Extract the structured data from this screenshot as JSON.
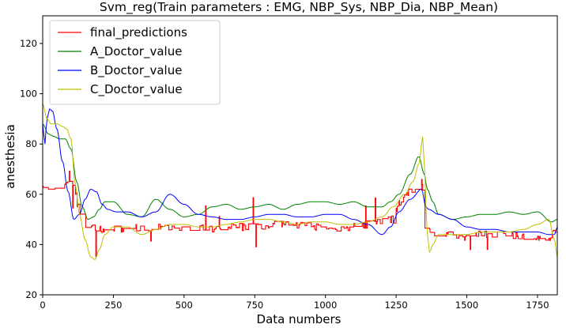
{
  "chart_data": {
    "type": "line",
    "title": "Svm_reg(Train parameters : EMG, NBP_Sys, NBP_Dia, NBP_Mean)",
    "xlabel": "Data numbers",
    "ylabel": "anesthesia",
    "xlim": [
      0,
      1820
    ],
    "ylim": [
      20,
      131
    ],
    "xticks": [
      0,
      250,
      500,
      750,
      1000,
      1250,
      1500,
      1750
    ],
    "yticks": [
      20,
      40,
      60,
      80,
      100,
      120
    ],
    "grid": false,
    "legend_position": "top-left",
    "series": [
      {
        "name": "final_predictions",
        "color": "#ff0000",
        "style": "noisy",
        "x": [
          0,
          20,
          40,
          60,
          80,
          100,
          115,
          125,
          140,
          160,
          180,
          200,
          230,
          260,
          300,
          350,
          400,
          450,
          500,
          550,
          600,
          650,
          700,
          750,
          800,
          850,
          900,
          950,
          1000,
          1050,
          1100,
          1150,
          1200,
          1240,
          1260,
          1280,
          1300,
          1320,
          1340,
          1345,
          1350,
          1360,
          1400,
          1450,
          1500,
          1550,
          1600,
          1650,
          1700,
          1750,
          1790,
          1810,
          1820
        ],
        "y": [
          62,
          62,
          61,
          63,
          63,
          65,
          61,
          55,
          47,
          46,
          47,
          46,
          47,
          46,
          46,
          47,
          47,
          47,
          46,
          47,
          46,
          47,
          47,
          47,
          48,
          48,
          48,
          47,
          47,
          46,
          47,
          48,
          49,
          50,
          57,
          60,
          61,
          63,
          65,
          60,
          46,
          45,
          44,
          44,
          43,
          44,
          44,
          44,
          43,
          43,
          43,
          45,
          49
        ]
      },
      {
        "name": "A_Doctor_value",
        "color": "#008000",
        "style": "smooth",
        "x": [
          0,
          20,
          40,
          60,
          80,
          100,
          120,
          140,
          160,
          180,
          200,
          220,
          250,
          300,
          350,
          400,
          450,
          500,
          550,
          600,
          650,
          700,
          750,
          800,
          850,
          900,
          950,
          1000,
          1050,
          1100,
          1150,
          1200,
          1230,
          1260,
          1300,
          1330,
          1350,
          1360,
          1380,
          1400,
          1450,
          1500,
          1550,
          1600,
          1650,
          1700,
          1750,
          1800,
          1820
        ],
        "y": [
          88,
          84,
          83,
          82,
          82,
          78,
          65,
          55,
          50,
          51,
          54,
          57,
          57,
          52,
          51,
          58,
          54,
          51,
          52,
          55,
          56,
          54,
          55,
          56,
          54,
          56,
          57,
          57,
          56,
          57,
          55,
          55,
          57,
          60,
          68,
          75,
          68,
          62,
          57,
          52,
          50,
          51,
          52,
          52,
          53,
          52,
          53,
          49,
          50
        ]
      },
      {
        "name": "B_Doctor_value",
        "color": "#0000ff",
        "style": "smooth",
        "x": [
          0,
          8,
          15,
          25,
          35,
          50,
          70,
          90,
          110,
          130,
          150,
          170,
          190,
          210,
          230,
          260,
          300,
          350,
          400,
          450,
          500,
          550,
          600,
          650,
          700,
          750,
          800,
          850,
          900,
          950,
          1000,
          1050,
          1100,
          1150,
          1200,
          1230,
          1260,
          1300,
          1340,
          1355,
          1365,
          1400,
          1450,
          1500,
          1550,
          1600,
          1650,
          1700,
          1750,
          1790,
          1810,
          1820
        ],
        "y": [
          88,
          80,
          90,
          94,
          93,
          86,
          73,
          61,
          50,
          52,
          58,
          62,
          61,
          56,
          54,
          53,
          53,
          51,
          53,
          60,
          56,
          52,
          51,
          50,
          50,
          51,
          52,
          52,
          51,
          51,
          52,
          52,
          50,
          48,
          44,
          47,
          53,
          58,
          62,
          55,
          54,
          52,
          50,
          47,
          46,
          46,
          45,
          45,
          45,
          44,
          44,
          47
        ]
      },
      {
        "name": "C_Doctor_value",
        "color": "#bfbf00",
        "style": "smooth",
        "x": [
          0,
          15,
          30,
          50,
          70,
          85,
          100,
          115,
          130,
          150,
          170,
          185,
          200,
          220,
          250,
          300,
          350,
          400,
          450,
          500,
          550,
          600,
          650,
          700,
          750,
          800,
          850,
          900,
          950,
          1000,
          1050,
          1100,
          1150,
          1200,
          1240,
          1280,
          1310,
          1330,
          1345,
          1350,
          1360,
          1368,
          1380,
          1400,
          1450,
          1500,
          1550,
          1600,
          1650,
          1700,
          1750,
          1790,
          1810,
          1820
        ],
        "y": [
          96,
          90,
          88,
          88,
          87,
          86,
          82,
          64,
          52,
          42,
          35,
          34,
          38,
          44,
          47,
          47,
          44,
          46,
          48,
          48,
          47,
          47,
          48,
          49,
          50,
          50,
          49,
          48,
          49,
          49,
          48,
          48,
          49,
          51,
          55,
          60,
          65,
          72,
          83,
          70,
          45,
          37,
          40,
          44,
          44,
          44,
          45,
          45,
          45,
          46,
          48,
          50,
          42,
          35
        ]
      }
    ]
  }
}
